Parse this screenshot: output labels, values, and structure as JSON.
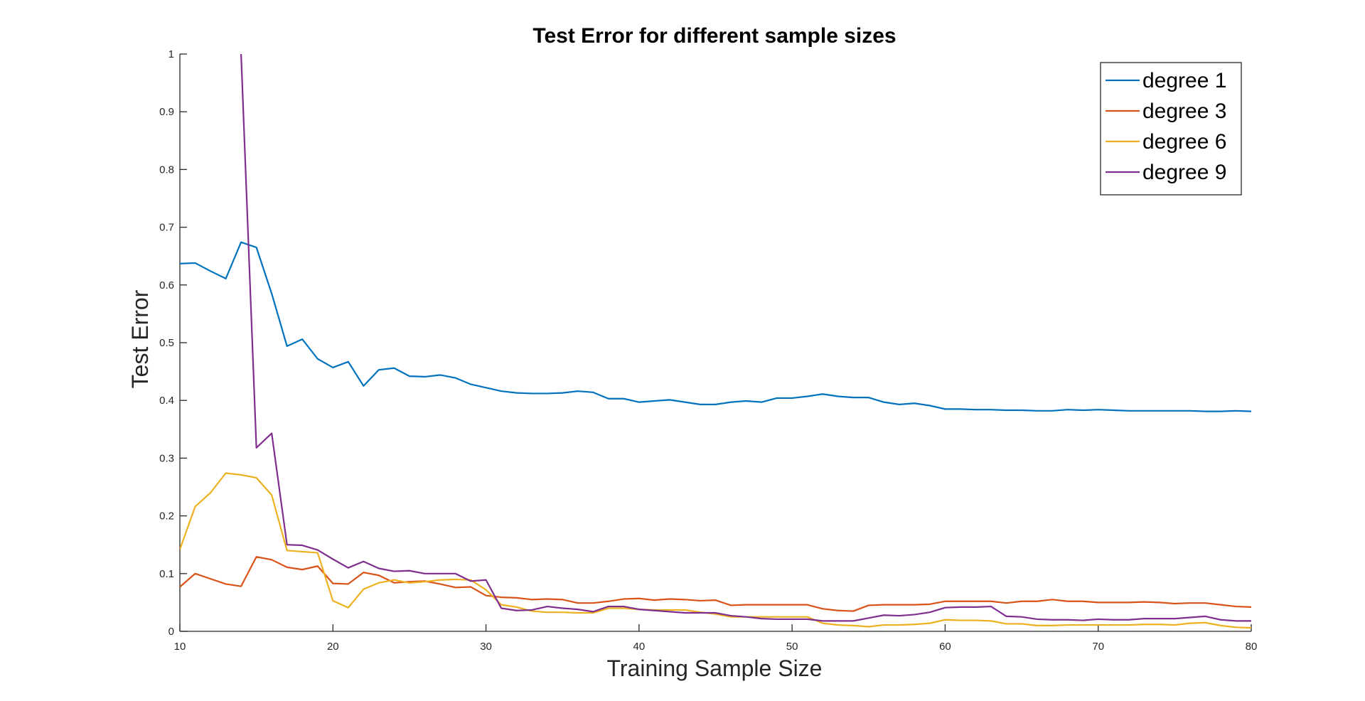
{
  "chart_data": {
    "type": "line",
    "title": "Test Error for different sample sizes",
    "xlabel": "Training Sample Size",
    "ylabel": "Test Error",
    "xlim": [
      10,
      80
    ],
    "ylim": [
      0,
      1
    ],
    "xticks": [
      10,
      20,
      30,
      40,
      50,
      60,
      70,
      80
    ],
    "yticks": [
      0,
      0.1,
      0.2,
      0.3,
      0.4,
      0.5,
      0.6,
      0.7,
      0.8,
      0.9,
      1
    ],
    "xtick_labels": [
      "10",
      "20",
      "30",
      "40",
      "50",
      "60",
      "70",
      "80"
    ],
    "ytick_labels": [
      "0",
      "0.1",
      "0.2",
      "0.3",
      "0.4",
      "0.5",
      "0.6",
      "0.7",
      "0.8",
      "0.9",
      "1"
    ],
    "grid": false,
    "legend_position": "top-right",
    "x": [
      10,
      11,
      12,
      13,
      14,
      15,
      16,
      17,
      18,
      19,
      20,
      21,
      22,
      23,
      24,
      25,
      26,
      27,
      28,
      29,
      30,
      31,
      32,
      33,
      34,
      35,
      36,
      37,
      38,
      39,
      40,
      41,
      42,
      43,
      44,
      45,
      46,
      47,
      48,
      49,
      50,
      51,
      52,
      53,
      54,
      55,
      56,
      57,
      58,
      59,
      60,
      61,
      62,
      63,
      64,
      65,
      66,
      67,
      68,
      69,
      70,
      71,
      72,
      73,
      74,
      75,
      76,
      77,
      78,
      79,
      80
    ],
    "series": [
      {
        "name": "degree 1",
        "color": "#0072BD",
        "values": [
          0.637,
          0.638,
          0.624,
          0.611,
          0.674,
          0.665,
          0.585,
          0.494,
          0.506,
          0.472,
          0.457,
          0.467,
          0.425,
          0.453,
          0.456,
          0.442,
          0.441,
          0.444,
          0.439,
          0.428,
          0.422,
          0.416,
          0.413,
          0.412,
          0.412,
          0.413,
          0.416,
          0.414,
          0.403,
          0.403,
          0.397,
          0.399,
          0.401,
          0.397,
          0.393,
          0.393,
          0.397,
          0.399,
          0.397,
          0.404,
          0.404,
          0.407,
          0.411,
          0.407,
          0.405,
          0.405,
          0.397,
          0.393,
          0.395,
          0.391,
          0.385,
          0.385,
          0.384,
          0.384,
          0.383,
          0.383,
          0.382,
          0.382,
          0.384,
          0.383,
          0.384,
          0.383,
          0.382,
          0.382,
          0.382,
          0.382,
          0.382,
          0.381,
          0.381,
          0.382,
          0.381
        ]
      },
      {
        "name": "degree 3",
        "color": "#D95319",
        "values": [
          0.077,
          0.1,
          0.091,
          0.082,
          0.078,
          0.129,
          0.124,
          0.111,
          0.107,
          0.113,
          0.083,
          0.082,
          0.102,
          0.097,
          0.084,
          0.086,
          0.087,
          0.082,
          0.076,
          0.077,
          0.062,
          0.059,
          0.058,
          0.055,
          0.056,
          0.055,
          0.049,
          0.049,
          0.052,
          0.056,
          0.057,
          0.054,
          0.056,
          0.055,
          0.053,
          0.054,
          0.045,
          0.046,
          0.046,
          0.046,
          0.046,
          0.046,
          0.039,
          0.036,
          0.035,
          0.045,
          0.046,
          0.046,
          0.046,
          0.047,
          0.052,
          0.052,
          0.052,
          0.052,
          0.049,
          0.052,
          0.052,
          0.055,
          0.052,
          0.052,
          0.05,
          0.05,
          0.05,
          0.051,
          0.05,
          0.048,
          0.049,
          0.049,
          0.046,
          0.043,
          0.042
        ]
      },
      {
        "name": "degree 6",
        "color": "#EDB120",
        "values": [
          0.142,
          0.216,
          0.24,
          0.274,
          0.271,
          0.266,
          0.236,
          0.14,
          0.138,
          0.136,
          0.053,
          0.041,
          0.073,
          0.084,
          0.089,
          0.084,
          0.086,
          0.089,
          0.09,
          0.089,
          0.072,
          0.046,
          0.042,
          0.035,
          0.033,
          0.033,
          0.032,
          0.032,
          0.04,
          0.04,
          0.038,
          0.037,
          0.037,
          0.037,
          0.033,
          0.03,
          0.025,
          0.025,
          0.025,
          0.025,
          0.025,
          0.025,
          0.014,
          0.011,
          0.01,
          0.008,
          0.011,
          0.011,
          0.012,
          0.014,
          0.02,
          0.019,
          0.019,
          0.018,
          0.013,
          0.013,
          0.01,
          0.01,
          0.011,
          0.011,
          0.011,
          0.011,
          0.011,
          0.012,
          0.012,
          0.011,
          0.014,
          0.015,
          0.01,
          0.007,
          0.006
        ]
      },
      {
        "name": "degree 9",
        "color": "#7E2F8E",
        "values": [
          null,
          null,
          null,
          null,
          1.0,
          0.318,
          0.343,
          0.15,
          0.149,
          0.141,
          0.125,
          0.11,
          0.121,
          0.109,
          0.104,
          0.105,
          0.1,
          0.1,
          0.1,
          0.087,
          0.089,
          0.04,
          0.036,
          0.037,
          0.043,
          0.04,
          0.038,
          0.034,
          0.043,
          0.043,
          0.038,
          0.036,
          0.034,
          0.032,
          0.032,
          0.032,
          0.027,
          0.025,
          0.022,
          0.021,
          0.021,
          0.021,
          0.018,
          0.018,
          0.018,
          0.023,
          0.028,
          0.027,
          0.029,
          0.033,
          0.041,
          0.042,
          0.042,
          0.043,
          0.026,
          0.025,
          0.021,
          0.02,
          0.02,
          0.019,
          0.021,
          0.02,
          0.02,
          0.022,
          0.022,
          0.022,
          0.024,
          0.026,
          0.02,
          0.018,
          0.018
        ]
      }
    ]
  }
}
